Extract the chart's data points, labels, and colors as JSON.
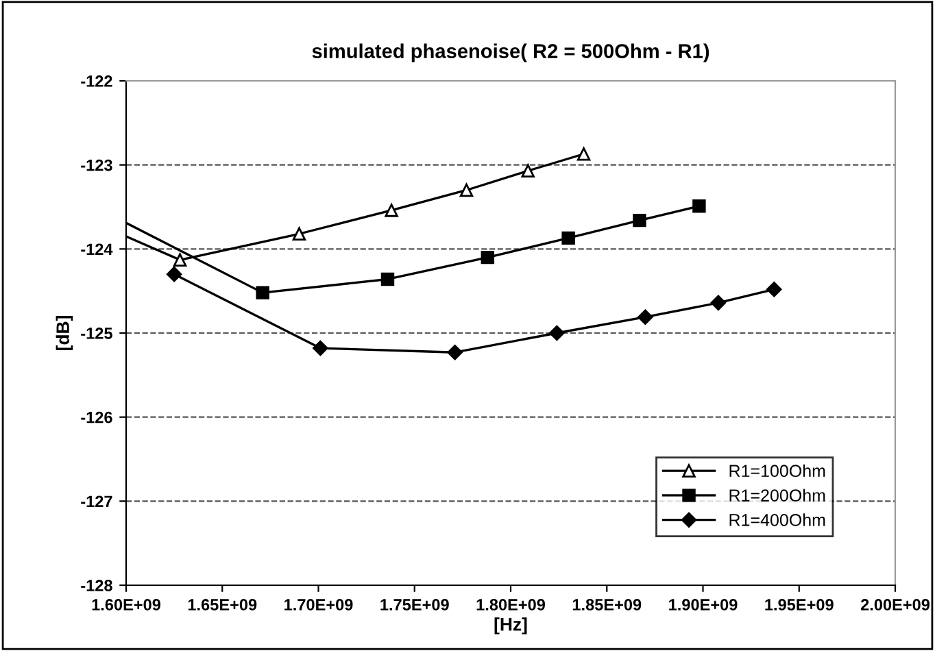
{
  "chart_data": {
    "type": "line",
    "title": "simulated phasenoise( R2 = 500Ohm - R1)",
    "xlabel": "[Hz]",
    "ylabel": "[dB]",
    "xlim": [
      1600000000,
      2000000000
    ],
    "xticks": [
      {
        "value": 1600000000,
        "label": "1.60E+09"
      },
      {
        "value": 1650000000,
        "label": "1.65E+09"
      },
      {
        "value": 1700000000,
        "label": "1.70E+09"
      },
      {
        "value": 1750000000,
        "label": "1.75E+09"
      },
      {
        "value": 1800000000,
        "label": "1.80E+09"
      },
      {
        "value": 1850000000,
        "label": "1.85E+09"
      },
      {
        "value": 1900000000,
        "label": "1.90E+09"
      },
      {
        "value": 1950000000,
        "label": "1.95E+09"
      },
      {
        "value": 2000000000,
        "label": "2.00E+09"
      }
    ],
    "ylim": [
      -128,
      -122
    ],
    "yticks": [
      -128,
      -127,
      -126,
      -125,
      -124,
      -123,
      -122
    ],
    "grid": "y",
    "legend": "bottom right",
    "line_style": "solid",
    "series": [
      {
        "name": "R1=100Ohm",
        "color": "#000000",
        "marker": "triangle",
        "x": [
          1600000000,
          1628000000,
          1690000000,
          1738000000,
          1777000000,
          1809000000,
          1838000000
        ],
        "values": [
          -123.85,
          -124.13,
          -123.82,
          -123.54,
          -123.3,
          -123.07,
          -122.87
        ]
      },
      {
        "name": "R1=200Ohm",
        "color": "#000000",
        "marker": "square",
        "x": [
          1600000000,
          1671000000,
          1736000000,
          1788000000,
          1830000000,
          1867000000,
          1898000000
        ],
        "values": [
          -123.69,
          -124.52,
          -124.36,
          -124.1,
          -123.87,
          -123.66,
          -123.49
        ]
      },
      {
        "name": "R1=400Ohm",
        "color": "#000000",
        "marker": "diamond",
        "x": [
          1625000000,
          1701000000,
          1771000000,
          1824000000,
          1870000000,
          1908000000,
          1937000000
        ],
        "values": [
          -124.3,
          -125.18,
          -125.23,
          -125.0,
          -124.81,
          -124.64,
          -124.48
        ]
      }
    ]
  }
}
